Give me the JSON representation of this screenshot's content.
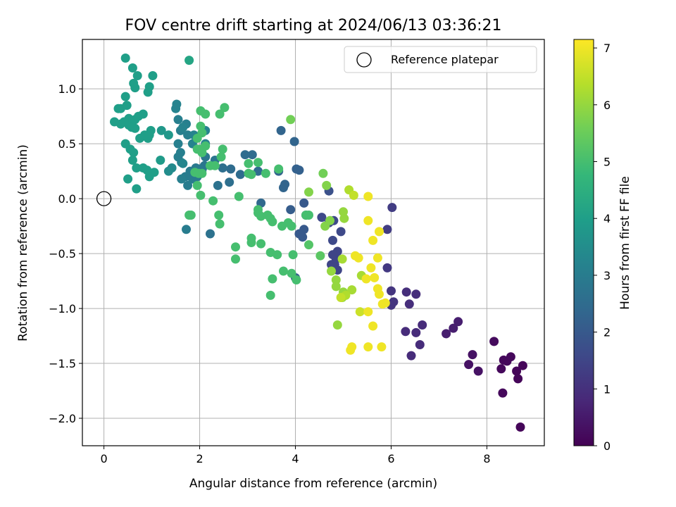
{
  "chart_data": {
    "type": "scatter",
    "title": "FOV centre drift starting at 2024/06/13 03:36:21",
    "xlabel": "Angular distance from reference (arcmin)",
    "ylabel": "Rotation from reference (arcmin)",
    "xlim": [
      -0.45,
      9.2
    ],
    "ylim": [
      -2.25,
      1.45
    ],
    "grid": true,
    "legend": {
      "position": "top-right",
      "entries": [
        "Reference platepar"
      ]
    },
    "xticks": [
      {
        "v": 0,
        "label": "0"
      },
      {
        "v": 2,
        "label": "2"
      },
      {
        "v": 4,
        "label": "4"
      },
      {
        "v": 6,
        "label": "6"
      },
      {
        "v": 8,
        "label": "8"
      }
    ],
    "yticks": [
      {
        "v": 1.0,
        "label": "1.0"
      },
      {
        "v": 0.5,
        "label": "0.5"
      },
      {
        "v": 0.0,
        "label": "0.0"
      },
      {
        "v": -0.5,
        "label": "−0.5"
      },
      {
        "v": -1.0,
        "label": "−1.0"
      },
      {
        "v": -1.5,
        "label": "−1.5"
      },
      {
        "v": -2.0,
        "label": "−2.0"
      }
    ],
    "colorbar": {
      "label": "Hours from first FF file",
      "range": [
        0,
        7.15
      ],
      "ticks": [
        {
          "v": 0,
          "label": "0"
        },
        {
          "v": 1,
          "label": "1"
        },
        {
          "v": 2,
          "label": "2"
        },
        {
          "v": 3,
          "label": "3"
        },
        {
          "v": 4,
          "label": "4"
        },
        {
          "v": 5,
          "label": "5"
        },
        {
          "v": 6,
          "label": "6"
        },
        {
          "v": 7,
          "label": "7"
        }
      ],
      "colormap": "viridis",
      "colormap_stops": [
        "#440154",
        "#482878",
        "#3e4989",
        "#31688e",
        "#26828e",
        "#1f9e89",
        "#35b779",
        "#6ece58",
        "#b5de2b",
        "#fde725"
      ]
    },
    "reference": {
      "name": "Reference platepar",
      "x": 0,
      "y": 0
    },
    "points": [
      [
        8.7,
        -2.08,
        0.1
      ],
      [
        8.75,
        -1.52,
        0.1
      ],
      [
        8.62,
        -1.57,
        0.1
      ],
      [
        8.65,
        -1.64,
        0.1
      ],
      [
        8.33,
        -1.77,
        0.15
      ],
      [
        8.3,
        -1.55,
        0.15
      ],
      [
        8.35,
        -1.47,
        0.15
      ],
      [
        8.42,
        -1.48,
        0.15
      ],
      [
        8.5,
        -1.44,
        0.15
      ],
      [
        8.15,
        -1.3,
        0.2
      ],
      [
        7.82,
        -1.57,
        0.35
      ],
      [
        7.7,
        -1.42,
        0.35
      ],
      [
        7.62,
        -1.51,
        0.35
      ],
      [
        7.4,
        -1.12,
        0.6
      ],
      [
        7.3,
        -1.18,
        0.6
      ],
      [
        7.15,
        -1.23,
        0.6
      ],
      [
        6.6,
        -1.33,
        0.9
      ],
      [
        6.42,
        -1.43,
        0.9
      ],
      [
        6.65,
        -1.15,
        0.9
      ],
      [
        6.52,
        -1.22,
        0.9
      ],
      [
        6.3,
        -1.21,
        0.9
      ],
      [
        6.52,
        -0.87,
        0.95
      ],
      [
        6.38,
        -0.96,
        0.95
      ],
      [
        6.32,
        -0.85,
        0.95
      ],
      [
        6.0,
        -0.84,
        1.1
      ],
      [
        6.05,
        -0.94,
        1.1
      ],
      [
        6.0,
        -0.97,
        1.1
      ],
      [
        5.92,
        -0.63,
        1.2
      ],
      [
        5.92,
        -0.28,
        1.3
      ],
      [
        6.02,
        -0.08,
        1.3
      ],
      [
        4.88,
        -0.48,
        1.5
      ],
      [
        4.85,
        -0.55,
        1.5
      ],
      [
        4.88,
        -0.65,
        1.5
      ],
      [
        4.75,
        -0.6,
        1.5
      ],
      [
        4.82,
        -0.6,
        1.5
      ],
      [
        4.78,
        -0.51,
        1.5
      ],
      [
        4.95,
        -0.3,
        1.6
      ],
      [
        4.8,
        -0.2,
        1.6
      ],
      [
        4.78,
        -0.38,
        1.6
      ],
      [
        4.7,
        -0.22,
        1.6
      ],
      [
        4.55,
        -0.17,
        1.6
      ],
      [
        4.7,
        0.07,
        1.8
      ],
      [
        4.18,
        -0.04,
        2.0
      ],
      [
        4.08,
        -0.32,
        2.0
      ],
      [
        4.18,
        -0.28,
        2.0
      ],
      [
        4.15,
        -0.35,
        2.0
      ],
      [
        4.22,
        -0.15,
        2.0
      ],
      [
        4.0,
        -0.72,
        2.1
      ],
      [
        3.9,
        -0.1,
        2.1
      ],
      [
        4.08,
        0.26,
        2.2
      ],
      [
        4.02,
        0.27,
        2.2
      ],
      [
        3.75,
        0.1,
        2.3
      ],
      [
        3.78,
        0.13,
        2.3
      ],
      [
        3.65,
        0.25,
        2.3
      ],
      [
        3.7,
        0.62,
        2.3
      ],
      [
        3.98,
        0.52,
        2.3
      ],
      [
        3.28,
        -0.04,
        2.4
      ],
      [
        3.22,
        0.25,
        2.5
      ],
      [
        3.1,
        0.4,
        2.5
      ],
      [
        2.95,
        0.4,
        2.5
      ],
      [
        2.85,
        0.22,
        2.5
      ],
      [
        2.65,
        0.27,
        2.5
      ],
      [
        2.62,
        0.15,
        2.6
      ],
      [
        2.48,
        0.28,
        2.6
      ],
      [
        2.38,
        0.12,
        2.7
      ],
      [
        2.22,
        -0.32,
        2.7
      ],
      [
        2.32,
        0.35,
        2.8
      ],
      [
        2.12,
        0.38,
        2.8
      ],
      [
        2.05,
        0.26,
        2.8
      ],
      [
        2.1,
        0.3,
        2.8
      ],
      [
        2.0,
        0.27,
        2.9
      ],
      [
        1.95,
        0.2,
        2.9
      ],
      [
        1.92,
        0.28,
        2.9
      ],
      [
        1.85,
        0.18,
        3.0
      ],
      [
        1.8,
        0.25,
        3.0
      ],
      [
        1.75,
        0.12,
        3.0
      ],
      [
        1.7,
        0.2,
        3.0
      ],
      [
        1.72,
        -0.28,
        3.0
      ],
      [
        1.62,
        0.18,
        3.1
      ],
      [
        1.62,
        0.33,
        3.1
      ],
      [
        1.55,
        0.38,
        3.1
      ],
      [
        1.6,
        0.42,
        3.1
      ],
      [
        1.55,
        0.5,
        3.1
      ],
      [
        1.75,
        0.58,
        3.1
      ],
      [
        1.72,
        0.68,
        3.1
      ],
      [
        1.6,
        0.62,
        3.1
      ],
      [
        1.55,
        0.72,
        3.1
      ],
      [
        1.5,
        0.82,
        3.2
      ],
      [
        1.52,
        0.86,
        3.2
      ],
      [
        1.65,
        0.65,
        3.2
      ],
      [
        2.12,
        0.62,
        3.2
      ],
      [
        2.12,
        0.5,
        3.2
      ],
      [
        1.85,
        0.5,
        3.2
      ],
      [
        1.88,
        0.58,
        3.2
      ],
      [
        1.65,
        0.32,
        3.3
      ],
      [
        1.42,
        0.28,
        3.4
      ],
      [
        1.35,
        0.25,
        3.5
      ],
      [
        1.35,
        0.58,
        3.8
      ],
      [
        1.2,
        0.62,
        3.8
      ],
      [
        1.18,
        0.35,
        3.9
      ],
      [
        1.05,
        0.24,
        4.0
      ],
      [
        0.95,
        0.2,
        4.0
      ],
      [
        0.9,
        0.26,
        4.0
      ],
      [
        0.82,
        0.28,
        4.0
      ],
      [
        0.92,
        0.55,
        4.0
      ],
      [
        0.98,
        0.62,
        4.0
      ],
      [
        0.95,
        0.58,
        4.0
      ],
      [
        0.75,
        0.55,
        4.0
      ],
      [
        0.85,
        0.58,
        4.0
      ],
      [
        0.68,
        0.28,
        4.0
      ],
      [
        0.6,
        0.35,
        4.0
      ],
      [
        0.62,
        0.42,
        4.0
      ],
      [
        0.55,
        0.45,
        4.0
      ],
      [
        0.45,
        0.5,
        4.0
      ],
      [
        0.5,
        0.18,
        4.0
      ],
      [
        0.68,
        0.09,
        4.0
      ],
      [
        0.58,
        0.65,
        4.0
      ],
      [
        0.65,
        0.64,
        4.0
      ],
      [
        0.52,
        0.67,
        4.0
      ],
      [
        0.65,
        0.72,
        4.0
      ],
      [
        0.72,
        0.75,
        4.0
      ],
      [
        0.82,
        0.77,
        4.0
      ],
      [
        0.52,
        0.73,
        4.0
      ],
      [
        0.42,
        0.7,
        4.0
      ],
      [
        0.35,
        0.68,
        4.0
      ],
      [
        0.35,
        0.82,
        4.0
      ],
      [
        0.3,
        0.82,
        4.0
      ],
      [
        0.22,
        0.7,
        4.0
      ],
      [
        0.48,
        0.85,
        4.0
      ],
      [
        0.45,
        0.93,
        4.0
      ],
      [
        0.62,
        1.05,
        4.0
      ],
      [
        0.7,
        1.12,
        4.0
      ],
      [
        0.65,
        1.01,
        4.0
      ],
      [
        0.92,
        0.97,
        4.0
      ],
      [
        0.95,
        1.02,
        4.0
      ],
      [
        1.02,
        1.12,
        4.0
      ],
      [
        0.6,
        1.19,
        4.0
      ],
      [
        0.45,
        1.28,
        4.0
      ],
      [
        1.78,
        1.26,
        4.2
      ],
      [
        2.02,
        0.8,
        5.0
      ],
      [
        2.12,
        0.77,
        5.0
      ],
      [
        2.42,
        0.77,
        5.0
      ],
      [
        2.52,
        0.83,
        5.0
      ],
      [
        2.02,
        0.66,
        5.0
      ],
      [
        2.05,
        0.6,
        5.0
      ],
      [
        1.95,
        0.55,
        5.0
      ],
      [
        1.95,
        0.45,
        5.0
      ],
      [
        2.02,
        0.45,
        5.0
      ],
      [
        2.05,
        0.42,
        5.0
      ],
      [
        2.12,
        0.48,
        5.0
      ],
      [
        2.48,
        0.45,
        5.0
      ],
      [
        2.45,
        0.38,
        5.0
      ],
      [
        2.22,
        0.3,
        5.0
      ],
      [
        2.32,
        0.3,
        5.0
      ],
      [
        1.98,
        0.23,
        5.0
      ],
      [
        2.05,
        0.23,
        5.0
      ],
      [
        1.9,
        0.24,
        5.0
      ],
      [
        1.95,
        0.12,
        5.0
      ],
      [
        2.02,
        0.03,
        5.0
      ],
      [
        2.28,
        -0.02,
        5.0
      ],
      [
        1.82,
        -0.15,
        5.0
      ],
      [
        1.78,
        -0.15,
        5.0
      ],
      [
        2.4,
        -0.15,
        5.0
      ],
      [
        2.42,
        -0.23,
        5.0
      ],
      [
        2.75,
        -0.44,
        5.0
      ],
      [
        2.75,
        -0.55,
        5.0
      ],
      [
        3.02,
        0.32,
        5.0
      ],
      [
        3.02,
        0.23,
        5.0
      ],
      [
        3.08,
        0.22,
        5.0
      ],
      [
        3.22,
        0.33,
        5.0
      ],
      [
        3.38,
        0.23,
        5.0
      ],
      [
        3.65,
        0.27,
        5.0
      ],
      [
        2.82,
        0.02,
        5.0
      ],
      [
        3.22,
        -0.1,
        5.0
      ],
      [
        3.22,
        -0.13,
        5.0
      ],
      [
        3.28,
        -0.16,
        5.0
      ],
      [
        3.42,
        -0.15,
        5.0
      ],
      [
        3.48,
        -0.18,
        5.0
      ],
      [
        3.52,
        -0.21,
        5.0
      ],
      [
        3.72,
        -0.25,
        5.0
      ],
      [
        3.85,
        -0.22,
        5.0
      ],
      [
        3.92,
        -0.25,
        5.0
      ],
      [
        4.22,
        -0.15,
        5.0
      ],
      [
        4.28,
        -0.15,
        5.0
      ],
      [
        3.08,
        -0.36,
        5.0
      ],
      [
        3.08,
        -0.4,
        5.0
      ],
      [
        3.28,
        -0.41,
        5.0
      ],
      [
        3.48,
        -0.49,
        5.0
      ],
      [
        3.62,
        -0.51,
        5.0
      ],
      [
        3.95,
        -0.51,
        5.0
      ],
      [
        3.75,
        -0.66,
        5.0
      ],
      [
        3.92,
        -0.68,
        5.0
      ],
      [
        4.02,
        -0.74,
        5.0
      ],
      [
        3.52,
        -0.73,
        5.0
      ],
      [
        3.48,
        -0.88,
        5.0
      ],
      [
        4.28,
        -0.42,
        5.2
      ],
      [
        4.52,
        -0.52,
        5.3
      ],
      [
        3.9,
        0.72,
        5.6
      ],
      [
        4.58,
        0.23,
        5.6
      ],
      [
        4.65,
        0.12,
        5.8
      ],
      [
        4.28,
        0.06,
        5.8
      ],
      [
        4.62,
        -0.25,
        5.8
      ],
      [
        4.72,
        -0.2,
        5.8
      ],
      [
        4.75,
        -0.66,
        6.0
      ],
      [
        4.85,
        -0.74,
        6.0
      ],
      [
        4.85,
        -0.8,
        6.0
      ],
      [
        4.88,
        -1.15,
        6.0
      ],
      [
        4.98,
        -0.9,
        6.0
      ],
      [
        5.0,
        -0.85,
        6.0
      ],
      [
        5.02,
        -0.18,
        6.0
      ],
      [
        5.0,
        -0.12,
        6.0
      ],
      [
        4.98,
        -0.55,
        6.2
      ],
      [
        5.18,
        -0.83,
        6.2
      ],
      [
        5.38,
        -0.7,
        6.2
      ],
      [
        5.05,
        -0.88,
        6.3
      ],
      [
        5.12,
        0.08,
        6.3
      ],
      [
        5.22,
        0.03,
        6.5
      ],
      [
        4.95,
        -0.9,
        6.5
      ],
      [
        5.35,
        -1.03,
        6.6
      ],
      [
        5.52,
        0.02,
        7.0
      ],
      [
        5.52,
        -0.2,
        7.0
      ],
      [
        5.62,
        -0.38,
        7.0
      ],
      [
        5.75,
        -0.3,
        7.0
      ],
      [
        5.72,
        -0.54,
        7.0
      ],
      [
        5.58,
        -0.63,
        7.0
      ],
      [
        5.48,
        -0.73,
        7.0
      ],
      [
        5.65,
        -0.72,
        7.0
      ],
      [
        5.72,
        -0.82,
        7.0
      ],
      [
        5.75,
        -0.87,
        7.0
      ],
      [
        5.82,
        -0.96,
        7.0
      ],
      [
        5.88,
        -0.95,
        7.0
      ],
      [
        5.52,
        -1.03,
        7.0
      ],
      [
        5.62,
        -1.16,
        7.0
      ],
      [
        5.52,
        -1.35,
        7.0
      ],
      [
        5.15,
        -1.38,
        7.0
      ],
      [
        5.18,
        -1.35,
        7.0
      ],
      [
        5.8,
        -1.35,
        7.0
      ],
      [
        5.25,
        -0.52,
        7.0
      ],
      [
        5.32,
        -0.54,
        7.0
      ]
    ]
  }
}
